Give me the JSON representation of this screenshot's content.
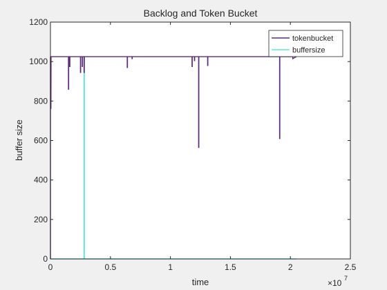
{
  "chart_data": {
    "type": "line",
    "title": "Backlog and Token Bucket",
    "xlabel": "time",
    "ylabel": "buffer size",
    "x_exponent_label": "×10",
    "x_exponent_power": "7",
    "xlim": [
      0,
      2.5
    ],
    "ylim": [
      0,
      1200
    ],
    "xticks": [
      0,
      0.5,
      1,
      1.5,
      2,
      2.5
    ],
    "xtick_labels": [
      "0",
      "0.5",
      "1",
      "1.5",
      "2",
      "2.5"
    ],
    "yticks": [
      0,
      200,
      400,
      600,
      800,
      1000,
      1200
    ],
    "ytick_labels": [
      "0",
      "200",
      "400",
      "600",
      "800",
      "1000",
      "1200"
    ],
    "grid": false,
    "legend_position": "top-right",
    "x_units_note": "x values in units of 1e7",
    "series": [
      {
        "name": "tokenbucket",
        "color": "#5b2a7d",
        "x": [
          0,
          0.0,
          0.004,
          0.005,
          0.006,
          0.006,
          0.007,
          0.15,
          0.15,
          0.152,
          0.152,
          0.16,
          0.16,
          0.162,
          0.162,
          0.25,
          0.25,
          0.252,
          0.252,
          0.265,
          0.265,
          0.267,
          0.267,
          0.28,
          0.28,
          0.282,
          0.282,
          0.64,
          0.64,
          0.642,
          0.642,
          0.68,
          0.68,
          0.682,
          0.682,
          1.18,
          1.18,
          1.182,
          1.182,
          1.2,
          1.2,
          1.202,
          1.202,
          1.235,
          1.235,
          1.237,
          1.237,
          1.31,
          1.31,
          1.312,
          1.312,
          1.91,
          1.91,
          1.912,
          1.912,
          2.02,
          2.02,
          2.05
        ],
        "y": [
          0,
          1025,
          760,
          1025,
          1025,
          1025,
          1025,
          1025,
          860,
          860,
          1025,
          1025,
          975,
          975,
          1025,
          1025,
          945,
          945,
          1025,
          1025,
          975,
          975,
          1025,
          1025,
          945,
          945,
          1025,
          1025,
          970,
          970,
          1025,
          1025,
          1015,
          1015,
          1025,
          1025,
          975,
          975,
          1025,
          1025,
          1005,
          1005,
          1025,
          1025,
          565,
          565,
          1025,
          1025,
          980,
          980,
          1025,
          1025,
          610,
          610,
          1025,
          1025,
          1015,
          1025
        ]
      },
      {
        "name": "buffersize",
        "color": "#5ce8e0",
        "x": [
          0,
          0.28,
          0.28,
          0.283,
          0.283,
          2.05
        ],
        "y": [
          0,
          0,
          1025,
          1025,
          0,
          0
        ]
      }
    ]
  }
}
